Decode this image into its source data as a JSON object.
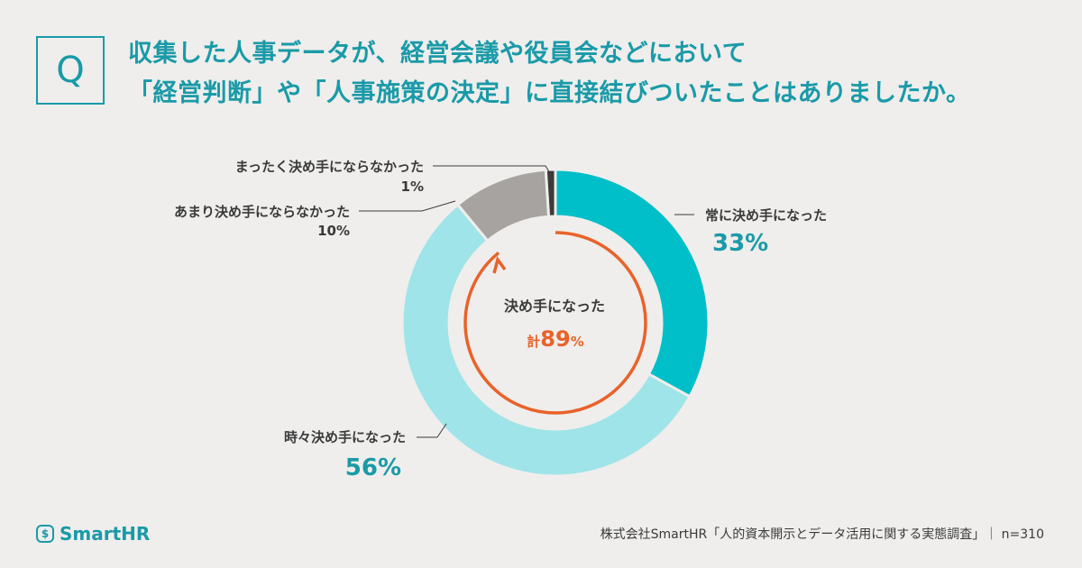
{
  "header": {
    "q_label": "Q",
    "question_line1": "収集した人事データが、経営会議や役員会などにおいて",
    "question_line2": "「経営判断」や「人事施策の決定」に直接結びついたことはありましたか。"
  },
  "chart_data": {
    "type": "pie",
    "variant": "donut",
    "slices": [
      {
        "label": "常に決め手になった",
        "value": 33,
        "value_label": "33%",
        "color": "#00bfc8"
      },
      {
        "label": "時々決め手になった",
        "value": 56,
        "value_label": "56%",
        "color": "#9ee4e8"
      },
      {
        "label": "あまり決め手にならなかった",
        "value": 10,
        "value_label": "10%",
        "color": "#a7a3a0"
      },
      {
        "label": "まったく決め手にならなかった",
        "value": 1,
        "value_label": "1%",
        "color": "#3d3a39"
      }
    ],
    "center": {
      "title": "決め手になった",
      "total_prefix": "計",
      "total_value": "89",
      "total_unit": "%",
      "total_color": "#e9622a"
    }
  },
  "footer": {
    "logo": "SmartHR",
    "logo_icon_glyph": "$",
    "source": "株式会社SmartHR「人的資本開示とデータ活用に関する実態調査」｜ n=310"
  },
  "colors": {
    "accent": "#1a9aa8",
    "background": "#efeeec",
    "arrow": "#e9622a"
  }
}
